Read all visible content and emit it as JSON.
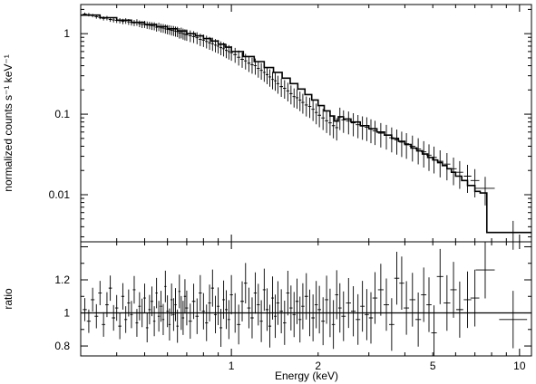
{
  "chart_data": [
    {
      "type": "scatter",
      "panel": "spectrum",
      "ylabel": "normalized counts s⁻¹ keV⁻¹",
      "xlabel": "",
      "x_scale": "log",
      "y_scale": "log",
      "xlim": [
        0.3,
        11
      ],
      "ylim": [
        0.0026,
        2.3
      ],
      "y_ticks": [
        {
          "value": 0.01,
          "label": "0.01"
        },
        {
          "value": 0.1,
          "label": "0.1"
        },
        {
          "value": 1,
          "label": "1"
        }
      ],
      "series": [
        {
          "kind": "data-with-errorbars",
          "x": [
            0.31,
            0.32,
            0.33,
            0.34,
            0.35,
            0.36,
            0.37,
            0.38,
            0.39,
            0.4,
            0.41,
            0.42,
            0.43,
            0.44,
            0.45,
            0.46,
            0.47,
            0.48,
            0.49,
            0.5,
            0.51,
            0.52,
            0.53,
            0.54,
            0.55,
            0.56,
            0.57,
            0.58,
            0.59,
            0.6,
            0.61,
            0.62,
            0.63,
            0.64,
            0.65,
            0.66,
            0.67,
            0.68,
            0.69,
            0.7,
            0.72,
            0.74,
            0.76,
            0.78,
            0.8,
            0.82,
            0.84,
            0.86,
            0.88,
            0.9,
            0.92,
            0.94,
            0.96,
            0.98,
            1.0,
            1.03,
            1.06,
            1.09,
            1.12,
            1.15,
            1.18,
            1.21,
            1.24,
            1.27,
            1.3,
            1.33,
            1.36,
            1.39,
            1.42,
            1.45,
            1.49,
            1.53,
            1.57,
            1.61,
            1.65,
            1.69,
            1.73,
            1.77,
            1.82,
            1.87,
            1.92,
            1.97,
            2.02,
            2.08,
            2.14,
            2.2,
            2.26,
            2.32,
            2.38,
            2.45,
            2.55,
            2.65,
            2.75,
            2.85,
            2.95,
            3.05,
            3.15,
            3.3,
            3.45,
            3.6,
            3.75,
            3.9,
            4.05,
            4.25,
            4.45,
            4.65,
            4.85,
            5.05,
            5.3,
            5.6,
            5.9,
            6.2,
            6.6,
            7.0,
            7.6,
            9.5
          ],
          "y": [
            1.75,
            1.72,
            1.68,
            1.62,
            1.6,
            1.55,
            1.56,
            1.5,
            1.48,
            1.46,
            1.45,
            1.42,
            1.44,
            1.4,
            1.38,
            1.36,
            1.38,
            1.33,
            1.3,
            1.31,
            1.28,
            1.27,
            1.25,
            1.24,
            1.2,
            1.22,
            1.18,
            1.17,
            1.15,
            1.13,
            1.12,
            1.1,
            1.09,
            1.07,
            1.06,
            1.02,
            1.03,
            1.0,
            0.98,
            0.97,
            0.94,
            0.92,
            0.89,
            0.85,
            0.83,
            0.8,
            0.77,
            0.75,
            0.72,
            0.7,
            0.67,
            0.65,
            0.62,
            0.6,
            0.58,
            0.55,
            0.51,
            0.48,
            0.46,
            0.43,
            0.41,
            0.4,
            0.37,
            0.35,
            0.33,
            0.31,
            0.29,
            0.27,
            0.26,
            0.24,
            0.22,
            0.21,
            0.195,
            0.18,
            0.165,
            0.16,
            0.15,
            0.14,
            0.13,
            0.125,
            0.115,
            0.105,
            0.097,
            0.09,
            0.083,
            0.078,
            0.072,
            0.068,
            0.092,
            0.085,
            0.082,
            0.078,
            0.074,
            0.071,
            0.069,
            0.065,
            0.062,
            0.058,
            0.055,
            0.051,
            0.048,
            0.045,
            0.043,
            0.04,
            0.037,
            0.034,
            0.031,
            0.029,
            0.026,
            0.024,
            0.021,
            0.019,
            0.017,
            0.015,
            0.012,
            0.0034
          ]
        },
        {
          "kind": "model-step",
          "x_edges": [
            0.3,
            0.35,
            0.4,
            0.45,
            0.5,
            0.55,
            0.6,
            0.65,
            0.7,
            0.75,
            0.8,
            0.85,
            0.9,
            0.95,
            1.0,
            1.1,
            1.2,
            1.3,
            1.4,
            1.5,
            1.6,
            1.7,
            1.8,
            1.9,
            2.0,
            2.1,
            2.2,
            2.28,
            2.35,
            2.45,
            2.6,
            2.8,
            3.0,
            3.2,
            3.4,
            3.6,
            3.8,
            4.0,
            4.2,
            4.4,
            4.6,
            4.8,
            5.0,
            5.2,
            5.4,
            5.6,
            5.8,
            6.0,
            6.3,
            6.6,
            7.0,
            7.3,
            7.7,
            11.0
          ],
          "y": [
            1.7,
            1.58,
            1.47,
            1.38,
            1.3,
            1.22,
            1.15,
            1.08,
            1.0,
            0.94,
            0.87,
            0.81,
            0.74,
            0.68,
            0.6,
            0.52,
            0.45,
            0.38,
            0.33,
            0.28,
            0.24,
            0.205,
            0.175,
            0.15,
            0.128,
            0.11,
            0.095,
            0.082,
            0.093,
            0.087,
            0.08,
            0.072,
            0.066,
            0.06,
            0.055,
            0.05,
            0.046,
            0.042,
            0.038,
            0.035,
            0.032,
            0.029,
            0.027,
            0.025,
            0.023,
            0.021,
            0.019,
            0.017,
            0.015,
            0.013,
            0.011,
            0.0105,
            0.0034
          ]
        }
      ]
    },
    {
      "type": "scatter",
      "panel": "ratio",
      "ylabel": "ratio",
      "xlabel": "Energy (keV)",
      "x_scale": "log",
      "xlim": [
        0.3,
        11
      ],
      "ylim": [
        0.74,
        1.43
      ],
      "x_ticks": [
        {
          "value": 1,
          "label": "1"
        },
        {
          "value": 2,
          "label": "2"
        },
        {
          "value": 5,
          "label": "5"
        },
        {
          "value": 10,
          "label": "10"
        }
      ],
      "y_ticks": [
        {
          "value": 0.8,
          "label": "0.8"
        },
        {
          "value": 1,
          "label": "1"
        },
        {
          "value": 1.2,
          "label": "1.2"
        }
      ],
      "reference_line": 1,
      "series": [
        {
          "kind": "data-with-errorbars",
          "x": [
            0.31,
            0.32,
            0.33,
            0.34,
            0.35,
            0.36,
            0.37,
            0.38,
            0.39,
            0.4,
            0.41,
            0.42,
            0.43,
            0.44,
            0.45,
            0.46,
            0.47,
            0.48,
            0.49,
            0.5,
            0.51,
            0.52,
            0.53,
            0.54,
            0.55,
            0.56,
            0.57,
            0.58,
            0.59,
            0.6,
            0.61,
            0.62,
            0.63,
            0.64,
            0.65,
            0.66,
            0.67,
            0.68,
            0.69,
            0.7,
            0.72,
            0.74,
            0.76,
            0.78,
            0.8,
            0.82,
            0.84,
            0.86,
            0.88,
            0.9,
            0.92,
            0.94,
            0.96,
            0.98,
            1.0,
            1.03,
            1.06,
            1.09,
            1.12,
            1.15,
            1.18,
            1.21,
            1.24,
            1.27,
            1.3,
            1.33,
            1.36,
            1.39,
            1.42,
            1.45,
            1.49,
            1.53,
            1.57,
            1.61,
            1.65,
            1.69,
            1.73,
            1.77,
            1.82,
            1.87,
            1.92,
            1.97,
            2.02,
            2.08,
            2.14,
            2.2,
            2.26,
            2.32,
            2.38,
            2.45,
            2.55,
            2.65,
            2.75,
            2.85,
            2.95,
            3.05,
            3.15,
            3.3,
            3.45,
            3.6,
            3.75,
            3.9,
            4.05,
            4.25,
            4.45,
            4.65,
            4.85,
            5.05,
            5.3,
            5.6,
            5.9,
            6.2,
            6.6,
            7.0,
            7.6,
            9.5
          ],
          "y": [
            1.02,
            0.95,
            1.08,
            0.98,
            1.12,
            0.93,
            1.05,
            1.15,
            0.97,
            1.03,
            0.92,
            1.1,
            0.96,
            1.06,
            0.99,
            1.14,
            0.94,
            1.04,
            1.0,
            1.09,
            0.91,
            1.02,
            1.07,
            0.95,
            1.12,
            0.98,
            1.04,
            0.96,
            1.16,
            1.01,
            0.93,
            1.08,
            0.99,
            1.05,
            0.92,
            1.13,
            1.0,
            0.97,
            1.1,
            1.03,
            0.95,
            1.07,
            0.98,
            1.12,
            1.01,
            0.94,
            1.06,
            1.15,
            0.99,
            1.04,
            0.91,
            1.08,
            1.02,
            0.96,
            1.11,
            1.0,
            0.93,
            1.07,
            1.18,
            1.03,
            0.97,
            1.12,
            1.05,
            0.95,
            1.14,
            1.02,
            0.92,
            1.09,
            0.98,
            1.06,
            1.01,
            0.94,
            1.12,
            1.03,
            0.99,
            1.07,
            0.96,
            1.04,
            1.1,
            1.0,
            0.97,
            1.05,
            1.02,
            0.95,
            1.08,
            1.0,
            0.93,
            1.11,
            1.03,
            0.98,
            1.06,
            1.01,
            0.96,
            1.04,
            0.99,
            0.97,
            1.09,
            1.14,
            1.05,
            0.93,
            1.21,
            1.18,
            1.03,
            1.08,
            0.96,
            1.11,
            1.05,
            0.88,
            1.22,
            1.06,
            1.14,
            1.02,
            1.08,
            1.09,
            1.26,
            0.96
          ]
        }
      ]
    }
  ]
}
